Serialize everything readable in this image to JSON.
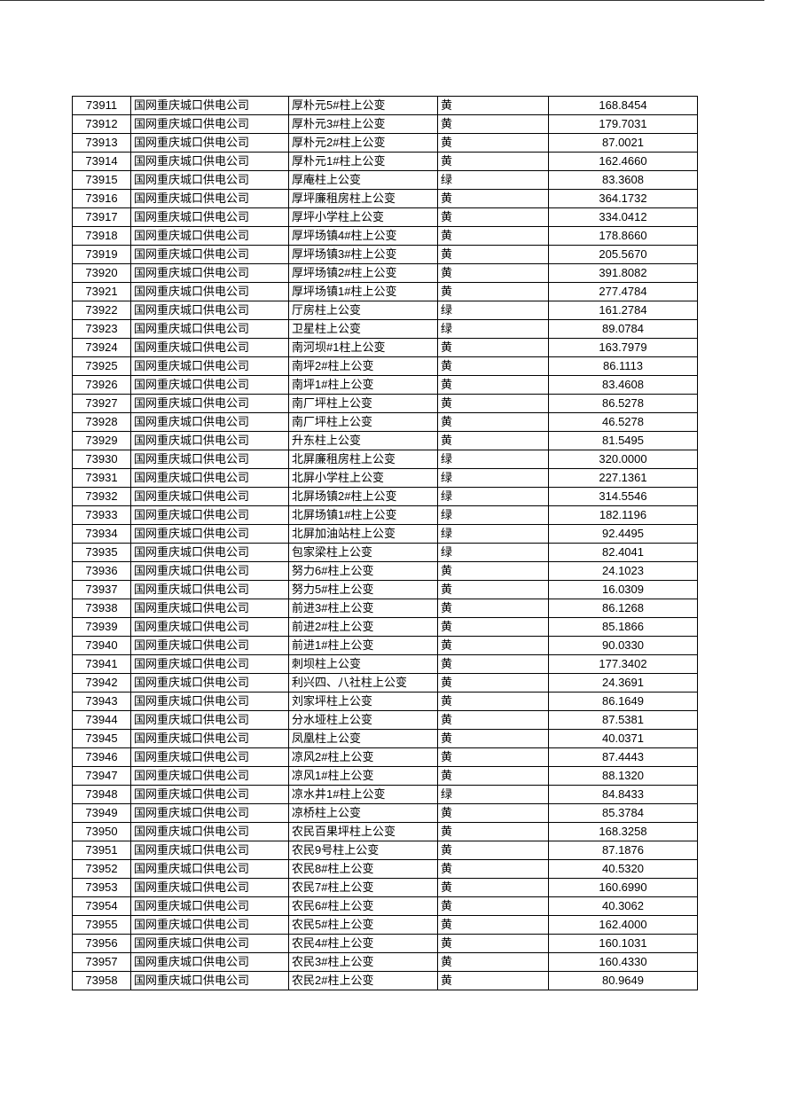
{
  "rows": [
    [
      "73911",
      "国网重庆城口供电公司",
      "厚朴元5#柱上公变",
      "黄",
      "168.8454"
    ],
    [
      "73912",
      "国网重庆城口供电公司",
      "厚朴元3#柱上公变",
      "黄",
      "179.7031"
    ],
    [
      "73913",
      "国网重庆城口供电公司",
      "厚朴元2#柱上公变",
      "黄",
      "87.0021"
    ],
    [
      "73914",
      "国网重庆城口供电公司",
      "厚朴元1#柱上公变",
      "黄",
      "162.4660"
    ],
    [
      "73915",
      "国网重庆城口供电公司",
      "厚庵柱上公变",
      "绿",
      "83.3608"
    ],
    [
      "73916",
      "国网重庆城口供电公司",
      "厚坪廉租房柱上公变",
      "黄",
      "364.1732"
    ],
    [
      "73917",
      "国网重庆城口供电公司",
      "厚坪小学柱上公变",
      "黄",
      "334.0412"
    ],
    [
      "73918",
      "国网重庆城口供电公司",
      "厚坪场镇4#柱上公变",
      "黄",
      "178.8660"
    ],
    [
      "73919",
      "国网重庆城口供电公司",
      "厚坪场镇3#柱上公变",
      "黄",
      "205.5670"
    ],
    [
      "73920",
      "国网重庆城口供电公司",
      "厚坪场镇2#柱上公变",
      "黄",
      "391.8082"
    ],
    [
      "73921",
      "国网重庆城口供电公司",
      "厚坪场镇1#柱上公变",
      "黄",
      "277.4784"
    ],
    [
      "73922",
      "国网重庆城口供电公司",
      "厅房柱上公变",
      "绿",
      "161.2784"
    ],
    [
      "73923",
      "国网重庆城口供电公司",
      "卫星柱上公变",
      "绿",
      "89.0784"
    ],
    [
      "73924",
      "国网重庆城口供电公司",
      "南河坝#1柱上公变",
      "黄",
      "163.7979"
    ],
    [
      "73925",
      "国网重庆城口供电公司",
      "南坪2#柱上公变",
      "黄",
      "86.1113"
    ],
    [
      "73926",
      "国网重庆城口供电公司",
      "南坪1#柱上公变",
      "黄",
      "83.4608"
    ],
    [
      "73927",
      "国网重庆城口供电公司",
      "南厂坪柱上公变",
      "黄",
      "86.5278"
    ],
    [
      "73928",
      "国网重庆城口供电公司",
      "南厂坪柱上公变",
      "黄",
      "46.5278"
    ],
    [
      "73929",
      "国网重庆城口供电公司",
      "升东柱上公变",
      "黄",
      "81.5495"
    ],
    [
      "73930",
      "国网重庆城口供电公司",
      "北屏廉租房柱上公变",
      "绿",
      "320.0000"
    ],
    [
      "73931",
      "国网重庆城口供电公司",
      "北屏小学柱上公变",
      "绿",
      "227.1361"
    ],
    [
      "73932",
      "国网重庆城口供电公司",
      "北屏场镇2#柱上公变",
      "绿",
      "314.5546"
    ],
    [
      "73933",
      "国网重庆城口供电公司",
      "北屏场镇1#柱上公变",
      "绿",
      "182.1196"
    ],
    [
      "73934",
      "国网重庆城口供电公司",
      "北屏加油站柱上公变",
      "绿",
      "92.4495"
    ],
    [
      "73935",
      "国网重庆城口供电公司",
      "包家梁柱上公变",
      "绿",
      "82.4041"
    ],
    [
      "73936",
      "国网重庆城口供电公司",
      "努力6#柱上公变",
      "黄",
      "24.1023"
    ],
    [
      "73937",
      "国网重庆城口供电公司",
      "努力5#柱上公变",
      "黄",
      "16.0309"
    ],
    [
      "73938",
      "国网重庆城口供电公司",
      "前进3#柱上公变",
      "黄",
      "86.1268"
    ],
    [
      "73939",
      "国网重庆城口供电公司",
      "前进2#柱上公变",
      "黄",
      "85.1866"
    ],
    [
      "73940",
      "国网重庆城口供电公司",
      "前进1#柱上公变",
      "黄",
      "90.0330"
    ],
    [
      "73941",
      "国网重庆城口供电公司",
      "刺坝柱上公变",
      "黄",
      "177.3402"
    ],
    [
      "73942",
      "国网重庆城口供电公司",
      "利兴四、八社柱上公变",
      "黄",
      "24.3691"
    ],
    [
      "73943",
      "国网重庆城口供电公司",
      "刘家坪柱上公变",
      "黄",
      "86.1649"
    ],
    [
      "73944",
      "国网重庆城口供电公司",
      "分水垭柱上公变",
      "黄",
      "87.5381"
    ],
    [
      "73945",
      "国网重庆城口供电公司",
      "凤凰柱上公变",
      "黄",
      "40.0371"
    ],
    [
      "73946",
      "国网重庆城口供电公司",
      "凉风2#柱上公变",
      "黄",
      "87.4443"
    ],
    [
      "73947",
      "国网重庆城口供电公司",
      "凉风1#柱上公变",
      "黄",
      "88.1320"
    ],
    [
      "73948",
      "国网重庆城口供电公司",
      "凉水井1#柱上公变",
      "绿",
      "84.8433"
    ],
    [
      "73949",
      "国网重庆城口供电公司",
      "凉桥柱上公变",
      "黄",
      "85.3784"
    ],
    [
      "73950",
      "国网重庆城口供电公司",
      "农民百果坪柱上公变",
      "黄",
      "168.3258"
    ],
    [
      "73951",
      "国网重庆城口供电公司",
      "农民9号柱上公变",
      "黄",
      "87.1876"
    ],
    [
      "73952",
      "国网重庆城口供电公司",
      "农民8#柱上公变",
      "黄",
      "40.5320"
    ],
    [
      "73953",
      "国网重庆城口供电公司",
      "农民7#柱上公变",
      "黄",
      "160.6990"
    ],
    [
      "73954",
      "国网重庆城口供电公司",
      "农民6#柱上公变",
      "黄",
      "40.3062"
    ],
    [
      "73955",
      "国网重庆城口供电公司",
      "农民5#柱上公变",
      "黄",
      "162.4000"
    ],
    [
      "73956",
      "国网重庆城口供电公司",
      "农民4#柱上公变",
      "黄",
      "160.1031"
    ],
    [
      "73957",
      "国网重庆城口供电公司",
      "农民3#柱上公变",
      "黄",
      "160.4330"
    ],
    [
      "73958",
      "国网重庆城口供电公司",
      "农民2#柱上公变",
      "黄",
      "80.9649"
    ]
  ]
}
